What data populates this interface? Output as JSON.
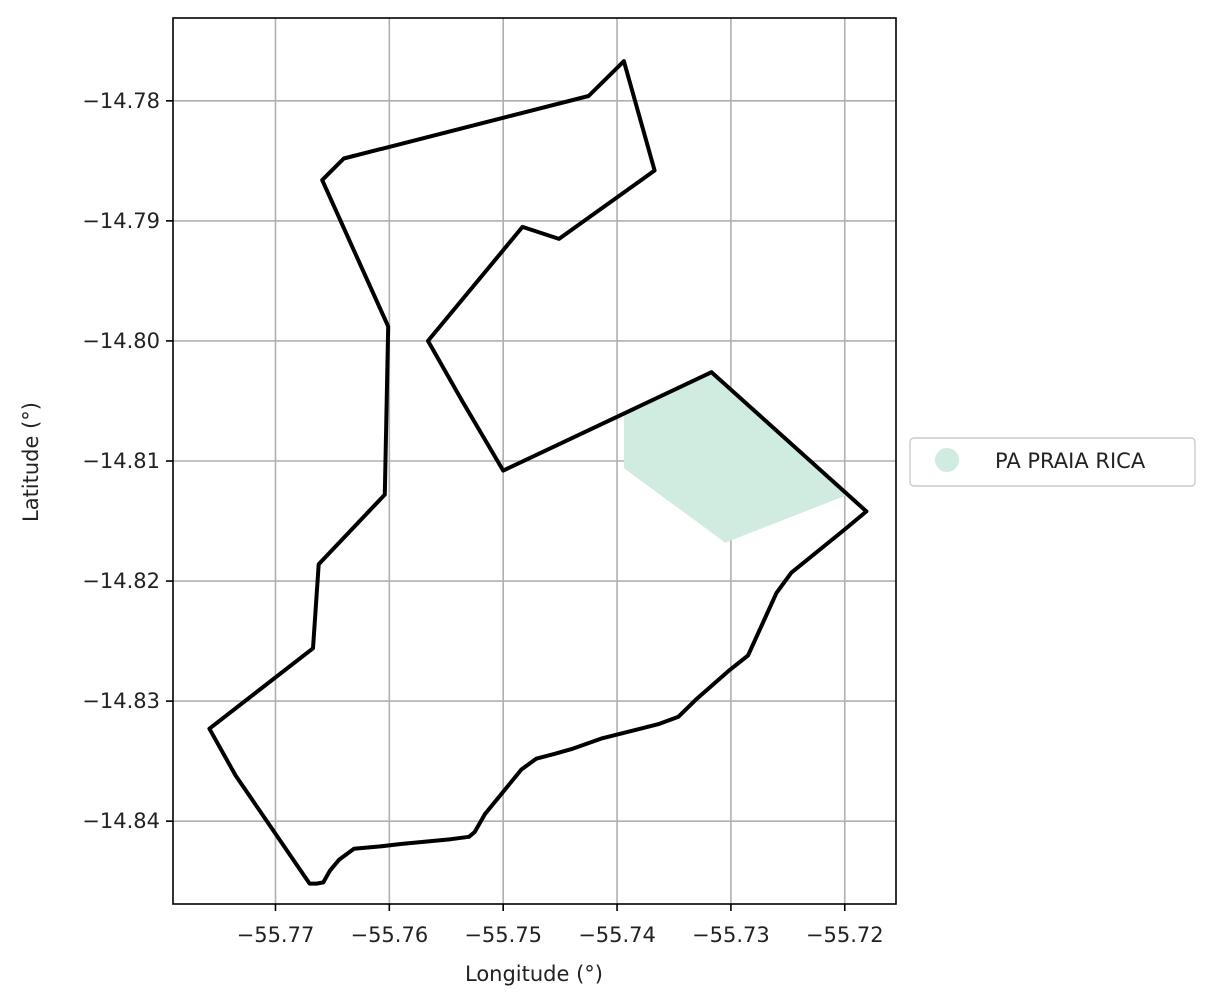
{
  "chart_data": {
    "type": "map",
    "xlabel": "Longitude (°)",
    "ylabel": "Latitude (°)",
    "xlim": [
      -55.779,
      -55.7155
    ],
    "ylim": [
      -14.8469,
      -14.7731
    ],
    "grid": true,
    "xticks": [
      -55.77,
      -55.76,
      -55.75,
      -55.74,
      -55.73,
      -55.72
    ],
    "yticks": [
      -14.78,
      -14.79,
      -14.8,
      -14.81,
      -14.82,
      -14.83,
      -14.84
    ],
    "xtick_labels": [
      "−55.77",
      "−55.76",
      "−55.75",
      "−55.74",
      "−55.73",
      "−55.72"
    ],
    "ytick_labels": [
      "−14.78",
      "−14.79",
      "−14.80",
      "−14.81",
      "−14.82",
      "−14.83",
      "−14.84"
    ],
    "legend": {
      "placement": "right",
      "entries": [
        {
          "label": "PA PRAIA RICA",
          "color": "#d0ebdf"
        }
      ]
    },
    "boundary": {
      "stroke_color": "#000000",
      "points": [
        [
          -55.7394,
          -14.7767
        ],
        [
          -55.7367,
          -14.7858
        ],
        [
          -55.7451,
          -14.7915
        ],
        [
          -55.7483,
          -14.7905
        ],
        [
          -55.7566,
          -14.8
        ],
        [
          -55.7536,
          -14.805
        ],
        [
          -55.75,
          -14.8108
        ],
        [
          -55.7317,
          -14.8026
        ],
        [
          -55.7181,
          -14.8142
        ],
        [
          -55.72,
          -14.8157
        ],
        [
          -55.7247,
          -14.8193
        ],
        [
          -55.726,
          -14.821
        ],
        [
          -55.7285,
          -14.8262
        ],
        [
          -55.7301,
          -14.8274
        ],
        [
          -55.7313,
          -14.8284
        ],
        [
          -55.7331,
          -14.8299
        ],
        [
          -55.7346,
          -14.8313
        ],
        [
          -55.7363,
          -14.8319
        ],
        [
          -55.7413,
          -14.8331
        ],
        [
          -55.744,
          -14.834
        ],
        [
          -55.7455,
          -14.8344
        ],
        [
          -55.7471,
          -14.8348
        ],
        [
          -55.7484,
          -14.8357
        ],
        [
          -55.7516,
          -14.8394
        ],
        [
          -55.7525,
          -14.8409
        ],
        [
          -55.753,
          -14.8413
        ],
        [
          -55.7546,
          -14.8415
        ],
        [
          -55.759,
          -14.8419
        ],
        [
          -55.7608,
          -14.8421
        ],
        [
          -55.7631,
          -14.8423
        ],
        [
          -55.7644,
          -14.8432
        ],
        [
          -55.7652,
          -14.8441
        ],
        [
          -55.7658,
          -14.8451
        ],
        [
          -55.7664,
          -14.8452
        ],
        [
          -55.767,
          -14.8452
        ],
        [
          -55.7735,
          -14.8362
        ],
        [
          -55.7758,
          -14.8323
        ],
        [
          -55.7667,
          -14.8256
        ],
        [
          -55.7662,
          -14.8186
        ],
        [
          -55.7604,
          -14.8128
        ],
        [
          -55.7601,
          -14.7988
        ],
        [
          -55.7659,
          -14.7866
        ],
        [
          -55.764,
          -14.7848
        ],
        [
          -55.7425,
          -14.7796
        ],
        [
          -55.7394,
          -14.7767
        ]
      ]
    },
    "region": {
      "name": "PA PRAIA RICA",
      "fill_color": "#d0ebdf",
      "points": [
        [
          -55.7394,
          -14.806
        ],
        [
          -55.7317,
          -14.8026
        ],
        [
          -55.7197,
          -14.8128
        ],
        [
          -55.7305,
          -14.8168
        ],
        [
          -55.7394,
          -14.8106
        ]
      ]
    }
  }
}
